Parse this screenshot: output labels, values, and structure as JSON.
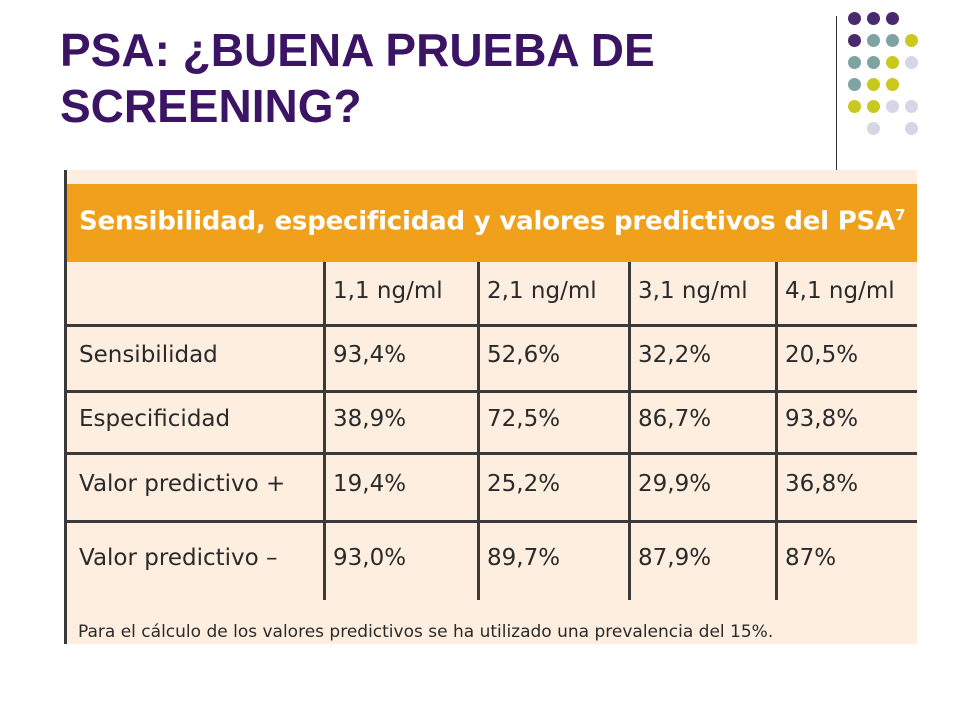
{
  "slide": {
    "title_line1": "PSA: ¿BUENA PRUEBA DE",
    "title_line2": "SCREENING?"
  },
  "table": {
    "header": "Sensibilidad, especificidad y valores predictivos del PSA",
    "header_superscript": "7",
    "columns": [
      "1,1 ng/ml",
      "2,1 ng/ml",
      "3,1 ng/ml",
      "4,1 ng/ml"
    ],
    "rows": [
      {
        "label": "Sensibilidad",
        "values": [
          "93,4%",
          "52,6%",
          "32,2%",
          "20,5%"
        ]
      },
      {
        "label": "Especificidad",
        "values": [
          "38,9%",
          "72,5%",
          "86,7%",
          "93,8%"
        ]
      },
      {
        "label": "Valor predictivo +",
        "values": [
          "19,4%",
          "25,2%",
          "29,9%",
          "36,8%"
        ]
      },
      {
        "label": "Valor predictivo –",
        "values": [
          "93,0%",
          "89,7%",
          "87,9%",
          "87%"
        ]
      }
    ],
    "footnote": "Para el cálculo de los valores predictivos se ha utilizado una prevalencia del 15%."
  },
  "colors": {
    "title": "#3c1464",
    "header_bg": "#f0a01a",
    "table_bg": "#fdeee0",
    "dot_purple": "#4a2a6e",
    "dot_teal": "#7fa3a3",
    "dot_yellow": "#c8c81e",
    "dot_lavender": "#d6d6e6"
  },
  "decoration": {
    "dot_grid": [
      [
        "purple",
        "purple",
        "purple",
        ""
      ],
      [
        "purple",
        "teal",
        "teal",
        "yellow"
      ],
      [
        "teal",
        "teal",
        "yellow",
        "lavender"
      ],
      [
        "teal",
        "yellow",
        "yellow",
        ""
      ],
      [
        "yellow",
        "yellow",
        "lavender",
        "lavender"
      ],
      [
        "",
        "lavender",
        "",
        "lavender"
      ]
    ]
  }
}
